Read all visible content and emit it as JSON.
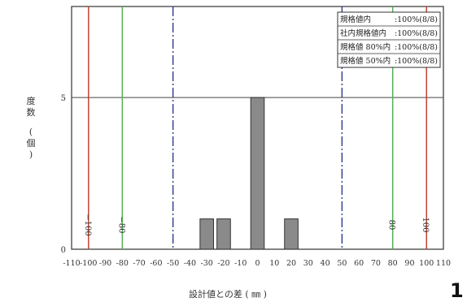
{
  "chart_data": {
    "type": "bar",
    "title": "",
    "ylabel": [
      "度",
      "数",
      "(",
      "個",
      ")"
    ],
    "xlabel": "設計値との差 (   ㎜   )",
    "xlim": [
      -110,
      110
    ],
    "ylim": [
      0,
      8
    ],
    "bar_width": 8,
    "bars": [
      {
        "x": -30,
        "value": 1
      },
      {
        "x": -20,
        "value": 1
      },
      {
        "x": 0,
        "value": 5
      },
      {
        "x": 20,
        "value": 1
      }
    ],
    "x_ticks": [
      -110,
      -100,
      -90,
      -80,
      -70,
      -60,
      -50,
      -40,
      -30,
      -20,
      -10,
      0,
      10,
      20,
      30,
      40,
      50,
      60,
      70,
      80,
      90,
      100,
      110
    ],
    "y_ticks": [
      0,
      5
    ],
    "h_line": 5,
    "limit_lines": [
      {
        "x": -100,
        "color": "#c0392b",
        "style": "solid",
        "label": "−100"
      },
      {
        "x": -80,
        "color": "#4caf50",
        "style": "solid",
        "label": "−80"
      },
      {
        "x": -50,
        "color": "#2c3a8a",
        "style": "dashdot",
        "label": ""
      },
      {
        "x": 50,
        "color": "#2c3a8a",
        "style": "dashdot",
        "label": ""
      },
      {
        "x": 80,
        "color": "#4caf50",
        "style": "solid",
        "label": "80"
      },
      {
        "x": 100,
        "color": "#c0392b",
        "style": "solid",
        "label": "100"
      }
    ],
    "legend": {
      "placement": "top-right",
      "rows": [
        {
          "name": "規格値内",
          "value": ":100%(8/8)"
        },
        {
          "name": "社内規格値内",
          "value": ":100%(8/8)"
        },
        {
          "name": "規格値 80%内",
          "value": ":100%(8/8)"
        },
        {
          "name": "規格値 50%内",
          "value": ":100%(8/8)"
        }
      ]
    },
    "colors": {
      "bar": "#8a8a8a",
      "bar_edge": "#333333",
      "frame": "#333333"
    }
  },
  "page_number": "1"
}
